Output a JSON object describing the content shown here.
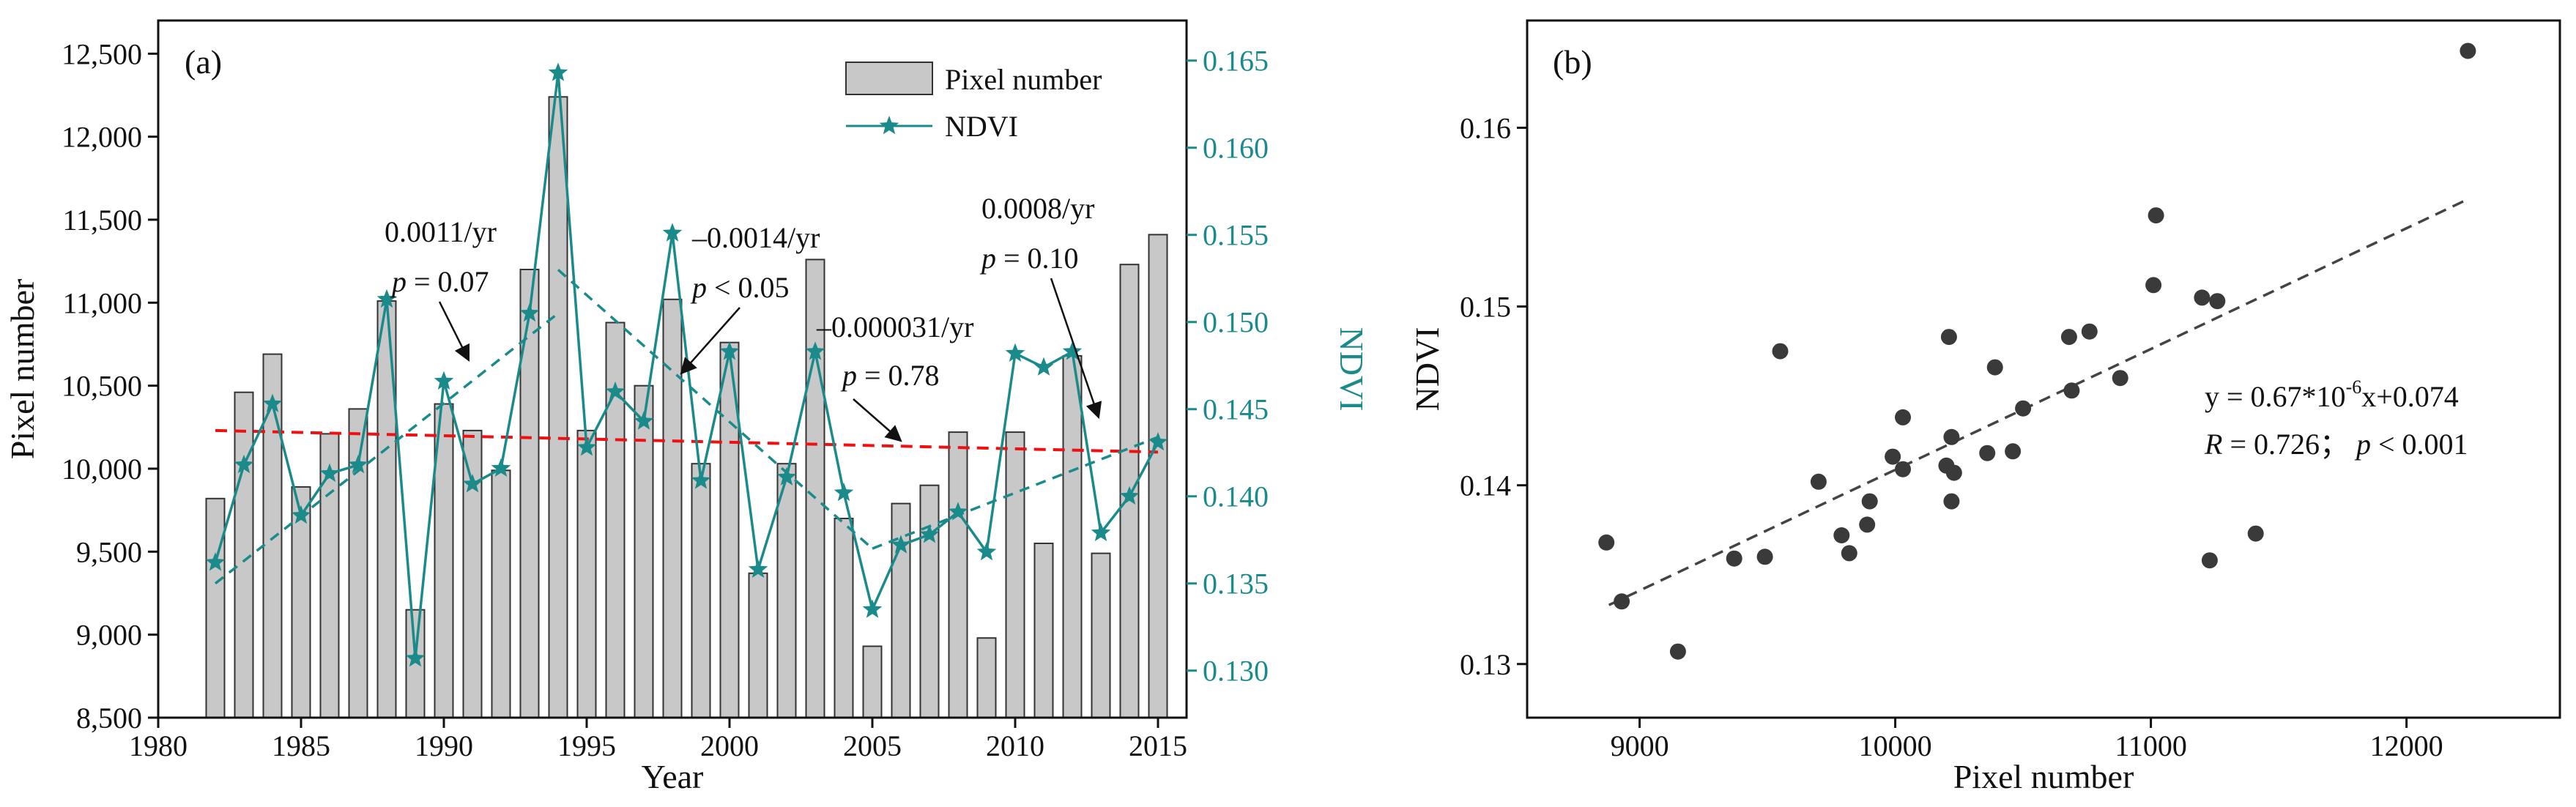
{
  "chart_data": [
    {
      "panel": "(a)",
      "type": "bar",
      "xlabel": "Year",
      "ylabel": "Pixel number",
      "y2label": "NDVI",
      "xlim": [
        1980,
        2016
      ],
      "ylim": [
        8500,
        12700
      ],
      "y2lim": [
        0.1273,
        0.1673
      ],
      "xticks": [
        "1980",
        "1985",
        "1990",
        "1995",
        "2000",
        "2005",
        "2010",
        "2015"
      ],
      "yticks": [
        "8,500",
        "9,000",
        "9,500",
        "10,000",
        "10,500",
        "11,000",
        "11,500",
        "12,000",
        "12,500"
      ],
      "y2ticks": [
        "0.130",
        "0.135",
        "0.140",
        "0.145",
        "0.150",
        "0.155",
        "0.160",
        "0.165"
      ],
      "legend": [
        {
          "label": "Pixel number"
        },
        {
          "label": "NDVI"
        }
      ],
      "colors": {
        "bar": "#c8c8c8",
        "ndvi": "#1a8a8a",
        "mean_trend": "#ee1111"
      },
      "years": [
        1982,
        1983,
        1984,
        1985,
        1986,
        1987,
        1988,
        1989,
        1990,
        1991,
        1992,
        1993,
        1994,
        1995,
        1996,
        1997,
        1998,
        1999,
        2000,
        2001,
        2002,
        2003,
        2004,
        2005,
        2006,
        2007,
        2008,
        2009,
        2010,
        2011,
        2012,
        2013,
        2014,
        2015
      ],
      "pixel_number": [
        9820,
        10460,
        10690,
        9890,
        10210,
        10360,
        11010,
        9150,
        10390,
        10230,
        9990,
        11200,
        12240,
        10230,
        10880,
        10500,
        11020,
        10030,
        10760,
        9370,
        10030,
        11260,
        9700,
        8930,
        9790,
        9900,
        10220,
        8980,
        10220,
        9550,
        10680,
        9490,
        11230,
        11410
      ],
      "ndvi": [
        0.1362,
        0.1418,
        0.1453,
        0.1389,
        0.1413,
        0.1418,
        0.1513,
        0.1307,
        0.1466,
        0.1407,
        0.1416,
        0.1505,
        0.1643,
        0.1428,
        0.146,
        0.1443,
        0.1551,
        0.1409,
        0.1483,
        0.1358,
        0.1411,
        0.1483,
        0.1402,
        0.1335,
        0.1372,
        0.1378,
        0.1391,
        0.1368,
        0.1482,
        0.1474,
        0.1483,
        0.1379,
        0.14,
        0.1431
      ],
      "trend_lines": [
        {
          "from": [
            1982,
            0.135
          ],
          "to": [
            1994,
            0.1505
          ]
        },
        {
          "from": [
            1994,
            0.153
          ],
          "to": [
            2005,
            0.137
          ]
        },
        {
          "from": [
            2005,
            0.137
          ],
          "to": [
            2015,
            0.1434
          ]
        }
      ],
      "mean_trend_line": {
        "from": [
          1982,
          10230
        ],
        "to": [
          2015,
          10100
        ]
      },
      "annotations": [
        {
          "line1": "0.0011/yr",
          "p_label": "p",
          "p_text": " = 0.07"
        },
        {
          "line1": "–0.0014/yr",
          "p_label": "p",
          "p_text": " < 0.05"
        },
        {
          "line1": "–0.000031/yr",
          "p_label": "p",
          "p_text": " = 0.78"
        },
        {
          "line1": "0.0008/yr",
          "p_label": "p",
          "p_text": " = 0.10"
        }
      ]
    },
    {
      "panel": "(b)",
      "type": "scatter",
      "xlabel": "Pixel number",
      "ylabel": "NDVI",
      "xlim": [
        8560,
        12600
      ],
      "ylim": [
        0.127,
        0.166
      ],
      "xticks": [
        "9000",
        "10000",
        "11000",
        "12000"
      ],
      "yticks": [
        "0.13",
        "0.14",
        "0.15",
        "0.16"
      ],
      "colors": {
        "point": "#3a3a3a",
        "fit": "#444444"
      },
      "fit_line": {
        "from": [
          8880,
          0.1333
        ],
        "to": [
          12240,
          0.156
        ]
      },
      "equation": {
        "text": "y = 0.67*10",
        "sup": "-6",
        "tail": "x+0.074"
      },
      "stats": {
        "r_label": "R",
        "r_text": " = 0.726；",
        "p_label": "p",
        "p_text": " < 0.001"
      },
      "points": [
        [
          8870,
          0.1368
        ],
        [
          8930,
          0.1335
        ],
        [
          9150,
          0.1307
        ],
        [
          9370,
          0.1359
        ],
        [
          9490,
          0.136
        ],
        [
          9550,
          0.1475
        ],
        [
          9700,
          0.1402
        ],
        [
          9790,
          0.1372
        ],
        [
          9820,
          0.1362
        ],
        [
          9890,
          0.1378
        ],
        [
          9900,
          0.1391
        ],
        [
          9990,
          0.1416
        ],
        [
          10030,
          0.1409
        ],
        [
          10030,
          0.1438
        ],
        [
          10200,
          0.1411
        ],
        [
          10210,
          0.1483
        ],
        [
          10220,
          0.1427
        ],
        [
          10220,
          0.1391
        ],
        [
          10230,
          0.1407
        ],
        [
          10360,
          0.1418
        ],
        [
          10390,
          0.1466
        ],
        [
          10460,
          0.1419
        ],
        [
          10500,
          0.1443
        ],
        [
          10680,
          0.1483
        ],
        [
          10690,
          0.1453
        ],
        [
          10760,
          0.1486
        ],
        [
          10880,
          0.146
        ],
        [
          11010,
          0.1512
        ],
        [
          11020,
          0.1551
        ],
        [
          11200,
          0.1505
        ],
        [
          11230,
          0.1358
        ],
        [
          11260,
          0.1503
        ],
        [
          11410,
          0.1373
        ],
        [
          12240,
          0.1643
        ]
      ]
    }
  ]
}
